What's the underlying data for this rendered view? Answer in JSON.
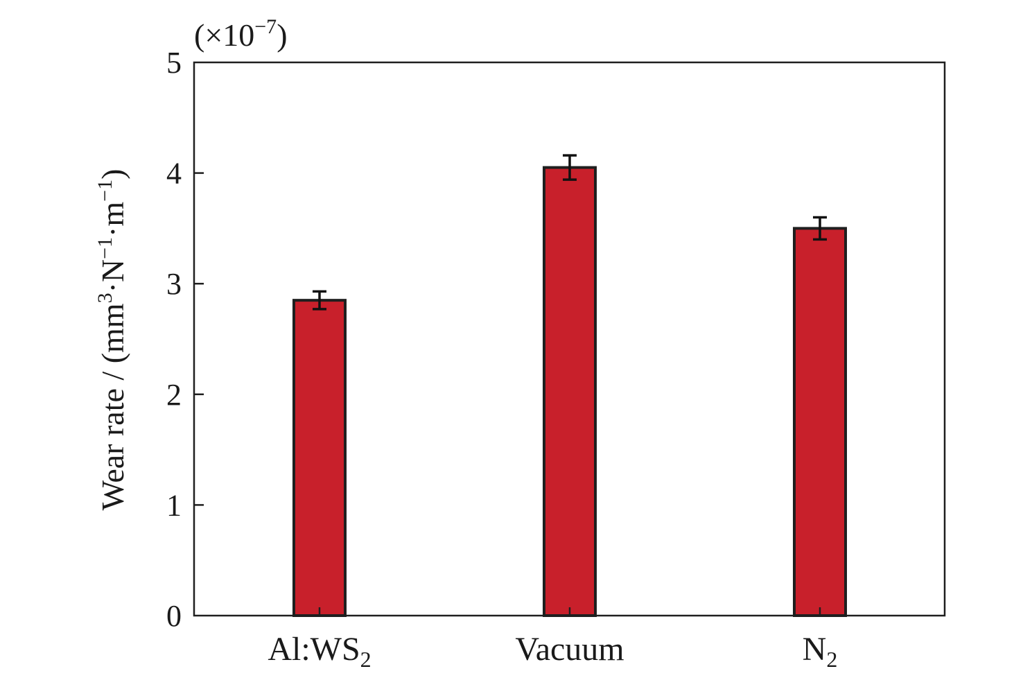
{
  "chart_data": {
    "type": "bar",
    "categories": [
      {
        "main": "Al:WS",
        "sub": "2"
      },
      {
        "main": "Vacuum",
        "sub": ""
      },
      {
        "main": "N",
        "sub": "2"
      }
    ],
    "values": [
      2.85,
      4.05,
      3.5
    ],
    "errors": [
      0.08,
      0.11,
      0.1
    ],
    "ylim": [
      0,
      5
    ],
    "yticks": [
      "0",
      "1",
      "2",
      "3",
      "4",
      "5"
    ],
    "ylabel": {
      "prefix": "Wear rate / (mm",
      "sup1": "3",
      "mid1": "·N",
      "sup2": "−1",
      "mid2": "·m",
      "sup3": "−1",
      "suffix": ")"
    },
    "scale_note": {
      "prefix": "(×10",
      "exp": "−7",
      "suffix": ")"
    },
    "grid": false,
    "colors": {
      "bar_fill": "#c8202b",
      "bar_edge": "#1f1f1f",
      "axis": "#1f1f1f"
    }
  }
}
